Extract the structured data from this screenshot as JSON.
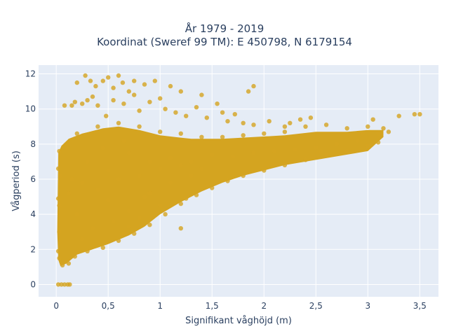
{
  "chart_data": {
    "type": "scatter",
    "title_lines": [
      "År 1979 - 2019",
      "Koordinat (Sweref 99 TM): E 450798, N 6179154"
    ],
    "xlabel": "Signifikant våghöjd (m)",
    "ylabel": "Vågperiod (s)",
    "xlim": [
      -0.17,
      3.68
    ],
    "ylim": [
      -0.7,
      12.5
    ],
    "xticks": [
      0,
      0.5,
      1,
      1.5,
      2,
      2.5,
      3,
      3.5
    ],
    "xtick_labels": [
      "0",
      "0,5",
      "1",
      "1,5",
      "2",
      "2,5",
      "3",
      "3,5"
    ],
    "yticks": [
      0,
      2,
      4,
      6,
      8,
      10,
      12
    ],
    "ytick_labels": [
      "0",
      "2",
      "4",
      "6",
      "8",
      "10",
      "12"
    ],
    "grid": true,
    "background": "#e5ecf6",
    "marker_color": "#d4a420",
    "series": [
      {
        "points": [
          [
            0.02,
            0
          ],
          [
            0.05,
            0
          ],
          [
            0.08,
            0
          ],
          [
            0.11,
            0
          ],
          [
            0.13,
            0
          ],
          [
            0.03,
            1.5
          ],
          [
            0.03,
            3.0
          ],
          [
            0.03,
            4.5
          ],
          [
            0.04,
            6.2
          ],
          [
            0.03,
            7.6
          ],
          [
            0.02,
            6.6
          ],
          [
            0.02,
            4.9
          ],
          [
            0.02,
            1.9
          ],
          [
            0.06,
            1.1
          ],
          [
            0.12,
            1.2
          ],
          [
            0.18,
            1.6
          ],
          [
            0.3,
            1.9
          ],
          [
            0.45,
            2.1
          ],
          [
            0.6,
            2.5
          ],
          [
            0.75,
            2.9
          ],
          [
            0.9,
            3.4
          ],
          [
            1.05,
            4.0
          ],
          [
            1.2,
            4.6
          ],
          [
            1.35,
            5.1
          ],
          [
            1.5,
            5.5
          ],
          [
            1.65,
            5.9
          ],
          [
            1.8,
            6.2
          ],
          [
            2.0,
            6.5
          ],
          [
            2.2,
            6.8
          ],
          [
            2.4,
            7.1
          ],
          [
            2.6,
            7.4
          ],
          [
            2.8,
            7.6
          ],
          [
            3.0,
            7.9
          ],
          [
            0.1,
            7.8
          ],
          [
            0.2,
            8.6
          ],
          [
            0.4,
            9.0
          ],
          [
            0.6,
            9.2
          ],
          [
            0.8,
            9.0
          ],
          [
            1.0,
            8.7
          ],
          [
            1.2,
            8.6
          ],
          [
            1.4,
            8.4
          ],
          [
            1.6,
            8.4
          ],
          [
            1.8,
            8.5
          ],
          [
            2.0,
            8.6
          ],
          [
            2.2,
            8.7
          ],
          [
            2.4,
            9.0
          ],
          [
            2.6,
            9.1
          ],
          [
            2.8,
            8.9
          ],
          [
            3.0,
            9.0
          ],
          [
            0.15,
            6.0
          ],
          [
            0.3,
            7.0
          ],
          [
            0.5,
            6.5
          ],
          [
            0.7,
            7.5
          ],
          [
            0.9,
            7.0
          ],
          [
            1.1,
            7.2
          ],
          [
            1.3,
            7.0
          ],
          [
            1.5,
            7.4
          ],
          [
            1.7,
            7.3
          ],
          [
            1.9,
            7.5
          ],
          [
            2.1,
            7.6
          ],
          [
            2.3,
            7.7
          ],
          [
            2.5,
            7.8
          ],
          [
            2.7,
            8.0
          ],
          [
            2.9,
            8.2
          ],
          [
            0.2,
            4.0
          ],
          [
            0.35,
            3.2
          ],
          [
            0.5,
            4.8
          ],
          [
            0.7,
            4.2
          ],
          [
            0.9,
            5.2
          ],
          [
            1.1,
            5.8
          ],
          [
            1.3,
            6.2
          ],
          [
            0.25,
            2.6
          ],
          [
            0.55,
            3.6
          ],
          [
            0.8,
            3.8
          ],
          [
            0.12,
            5.2
          ],
          [
            0.25,
            5.8
          ],
          [
            0.4,
            5.4
          ],
          [
            0.6,
            6.0
          ],
          [
            0.8,
            6.2
          ],
          [
            1.0,
            6.6
          ],
          [
            1.2,
            6.8
          ],
          [
            1.4,
            6.6
          ],
          [
            0.45,
            7.8
          ],
          [
            0.65,
            8.2
          ],
          [
            3.1,
            8.6
          ],
          [
            3.2,
            8.7
          ],
          [
            3.3,
            9.6
          ],
          [
            3.45,
            9.7
          ],
          [
            3.5,
            9.7
          ],
          [
            3.1,
            8.1
          ],
          [
            3.05,
            9.4
          ],
          [
            2.95,
            8.6
          ],
          [
            3.15,
            8.9
          ],
          [
            2.55,
            7.6
          ],
          [
            0.15,
            10.2
          ],
          [
            0.25,
            10.3
          ],
          [
            0.2,
            11.5
          ],
          [
            0.28,
            11.9
          ],
          [
            0.33,
            11.6
          ],
          [
            0.38,
            11.3
          ],
          [
            0.45,
            11.6
          ],
          [
            0.5,
            11.8
          ],
          [
            0.55,
            11.2
          ],
          [
            0.6,
            11.9
          ],
          [
            0.64,
            11.5
          ],
          [
            0.7,
            11.0
          ],
          [
            0.75,
            11.6
          ],
          [
            0.85,
            11.4
          ],
          [
            0.95,
            11.6
          ],
          [
            1.1,
            11.3
          ],
          [
            1.2,
            11.0
          ],
          [
            1.4,
            10.8
          ],
          [
            0.3,
            10.5
          ],
          [
            0.35,
            10.7
          ],
          [
            0.4,
            10.2
          ],
          [
            0.55,
            10.5
          ],
          [
            0.65,
            10.3
          ],
          [
            0.75,
            10.8
          ],
          [
            0.8,
            9.9
          ],
          [
            0.9,
            10.4
          ],
          [
            1.0,
            10.6
          ],
          [
            1.05,
            10.0
          ],
          [
            1.15,
            9.8
          ],
          [
            1.25,
            9.6
          ],
          [
            1.35,
            10.1
          ],
          [
            1.45,
            9.5
          ],
          [
            1.55,
            10.3
          ],
          [
            1.65,
            9.3
          ],
          [
            1.8,
            9.2
          ],
          [
            1.9,
            9.1
          ],
          [
            2.05,
            9.3
          ],
          [
            2.2,
            9.0
          ],
          [
            2.35,
            9.4
          ],
          [
            2.45,
            9.5
          ],
          [
            2.25,
            9.2
          ],
          [
            1.72,
            9.7
          ],
          [
            0.08,
            10.2
          ],
          [
            0.18,
            10.4
          ],
          [
            1.9,
            11.3
          ],
          [
            1.85,
            11.0
          ],
          [
            1.6,
            9.8
          ],
          [
            0.48,
            9.6
          ],
          [
            0.85,
            5.0
          ],
          [
            1.0,
            4.5
          ],
          [
            1.25,
            4.9
          ],
          [
            1.45,
            5.6
          ],
          [
            0.65,
            2.9
          ],
          [
            1.2,
            3.2
          ],
          [
            0.7,
            3.3
          ]
        ]
      }
    ]
  }
}
